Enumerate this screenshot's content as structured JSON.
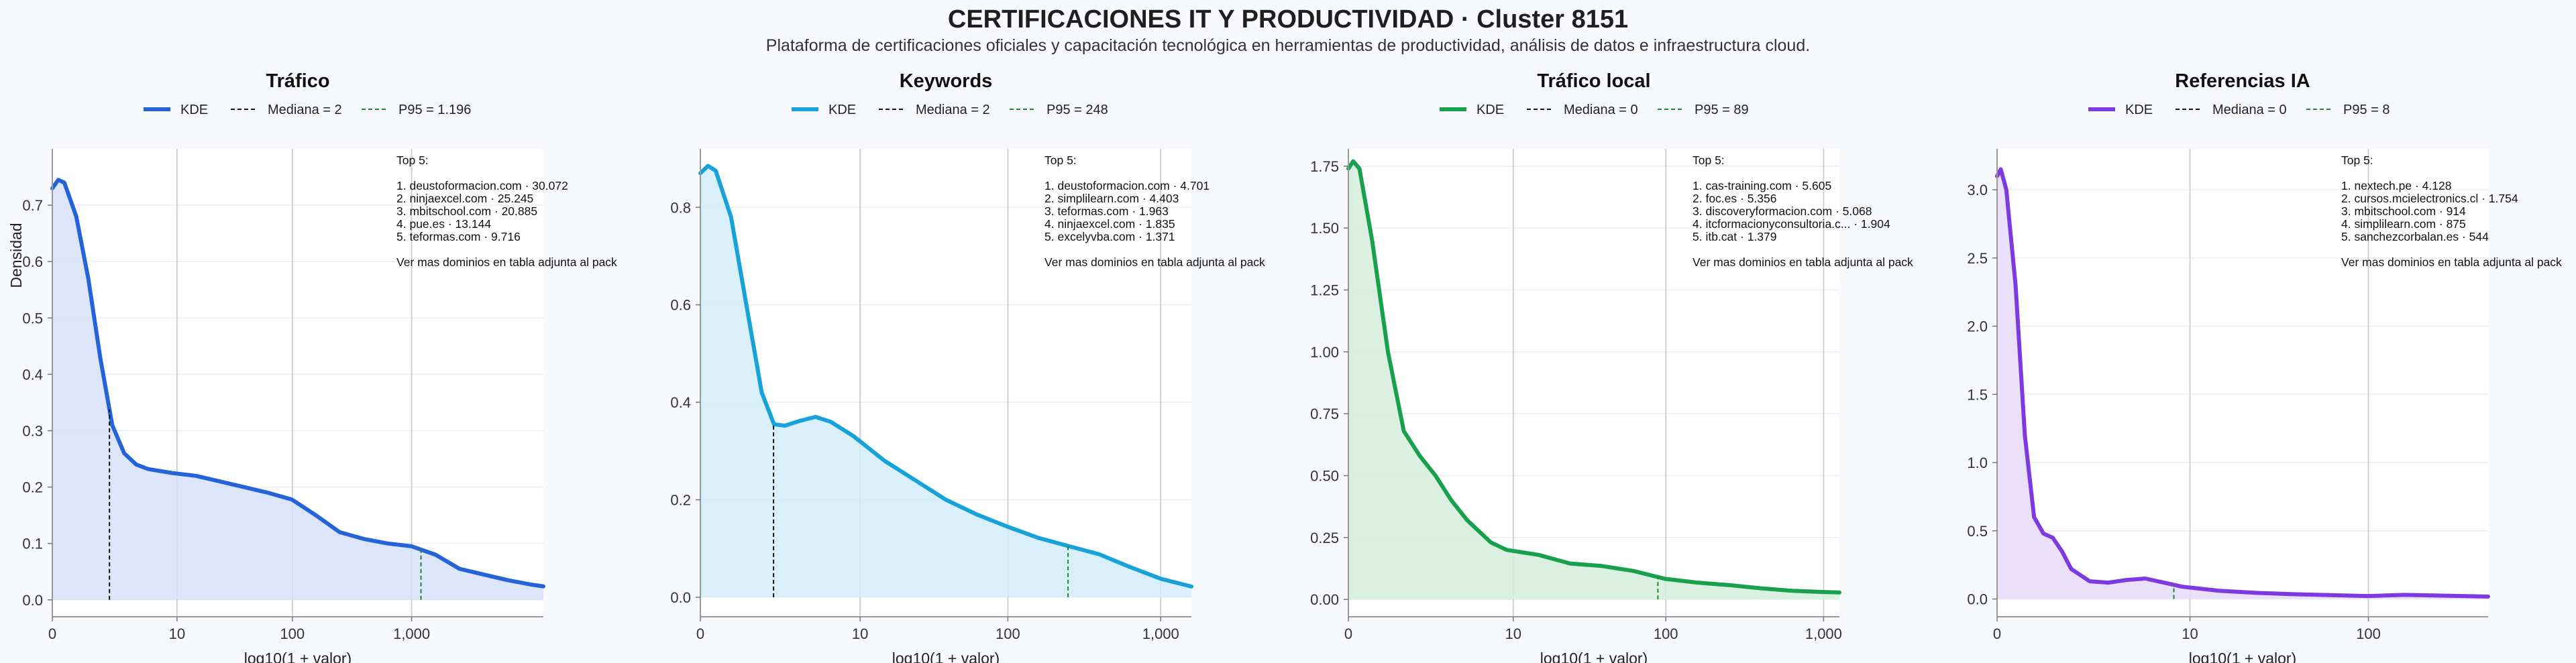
{
  "page": {
    "title": "CERTIFICACIONES IT Y PRODUCTIVIDAD · Cluster 8151",
    "subtitle": "Plataforma de certificaciones oficiales y capacitación tecnológica en herramientas de productividad, análisis de datos e infraestructura cloud."
  },
  "chart_data": [
    {
      "type": "area",
      "title": "Tráfico",
      "color": "#2563d8",
      "fill": "#d6e1f8",
      "xlabel": "log10(1 + valor)",
      "ylabel": "Densidad",
      "xlim": [
        0,
        4.1
      ],
      "ylim": [
        -0.03,
        0.8
      ],
      "xticks": [
        {
          "v": 0,
          "label": "0"
        },
        {
          "v": 1.041,
          "label": "10"
        },
        {
          "v": 2.004,
          "label": "100"
        },
        {
          "v": 3.0,
          "label": "1,000"
        }
      ],
      "yticks": [
        {
          "v": 0,
          "label": "0.0"
        },
        {
          "v": 0.1,
          "label": "0.1"
        },
        {
          "v": 0.2,
          "label": "0.2"
        },
        {
          "v": 0.3,
          "label": "0.3"
        },
        {
          "v": 0.4,
          "label": "0.4"
        },
        {
          "v": 0.5,
          "label": "0.5"
        },
        {
          "v": 0.6,
          "label": "0.6"
        },
        {
          "v": 0.7,
          "label": "0.7"
        }
      ],
      "legend": [
        "KDE",
        "Mediana = 2",
        "P95 = 1.196"
      ],
      "median_x": 0.477,
      "p95_x": 3.078,
      "kde": [
        [
          0,
          0.73
        ],
        [
          0.05,
          0.745
        ],
        [
          0.1,
          0.74
        ],
        [
          0.2,
          0.68
        ],
        [
          0.3,
          0.57
        ],
        [
          0.4,
          0.43
        ],
        [
          0.5,
          0.31
        ],
        [
          0.6,
          0.26
        ],
        [
          0.7,
          0.24
        ],
        [
          0.8,
          0.232
        ],
        [
          1.0,
          0.225
        ],
        [
          1.2,
          0.22
        ],
        [
          1.4,
          0.21
        ],
        [
          1.6,
          0.2
        ],
        [
          1.8,
          0.19
        ],
        [
          2.0,
          0.178
        ],
        [
          2.2,
          0.15
        ],
        [
          2.4,
          0.12
        ],
        [
          2.6,
          0.108
        ],
        [
          2.8,
          0.1
        ],
        [
          3.0,
          0.095
        ],
        [
          3.2,
          0.08
        ],
        [
          3.4,
          0.055
        ],
        [
          3.6,
          0.045
        ],
        [
          3.8,
          0.035
        ],
        [
          4.0,
          0.027
        ],
        [
          4.1,
          0.024
        ]
      ],
      "annotation": [
        "Top 5:",
        "",
        "1. deustoformacion.com · 30.072",
        "2. ninjaexcel.com · 25.245",
        "3. mbitschool.com · 20.885",
        "4. pue.es · 13.144",
        "5. teformas.com · 9.716",
        "",
        "Ver mas dominios en tabla adjunta al pack"
      ]
    },
    {
      "type": "area",
      "title": "Keywords",
      "color": "#17a2da",
      "fill": "#d2ecf9",
      "xlabel": "log10(1 + valor)",
      "ylabel": "",
      "xlim": [
        0,
        3.2
      ],
      "ylim": [
        -0.04,
        0.92
      ],
      "xticks": [
        {
          "v": 0,
          "label": "0"
        },
        {
          "v": 1.041,
          "label": "10"
        },
        {
          "v": 2.004,
          "label": "100"
        },
        {
          "v": 3.0,
          "label": "1,000"
        }
      ],
      "yticks": [
        {
          "v": 0,
          "label": "0.0"
        },
        {
          "v": 0.2,
          "label": "0.2"
        },
        {
          "v": 0.4,
          "label": "0.4"
        },
        {
          "v": 0.6,
          "label": "0.6"
        },
        {
          "v": 0.8,
          "label": "0.8"
        }
      ],
      "legend": [
        "KDE",
        "Mediana = 2",
        "P95 = 248"
      ],
      "median_x": 0.477,
      "p95_x": 2.396,
      "kde": [
        [
          0,
          0.87
        ],
        [
          0.05,
          0.885
        ],
        [
          0.1,
          0.875
        ],
        [
          0.2,
          0.78
        ],
        [
          0.3,
          0.6
        ],
        [
          0.4,
          0.42
        ],
        [
          0.48,
          0.355
        ],
        [
          0.55,
          0.352
        ],
        [
          0.65,
          0.362
        ],
        [
          0.75,
          0.37
        ],
        [
          0.85,
          0.36
        ],
        [
          1.0,
          0.33
        ],
        [
          1.2,
          0.28
        ],
        [
          1.4,
          0.24
        ],
        [
          1.6,
          0.2
        ],
        [
          1.8,
          0.17
        ],
        [
          2.0,
          0.145
        ],
        [
          2.2,
          0.122
        ],
        [
          2.4,
          0.105
        ],
        [
          2.6,
          0.088
        ],
        [
          2.8,
          0.062
        ],
        [
          3.0,
          0.038
        ],
        [
          3.2,
          0.022
        ]
      ],
      "annotation": [
        "Top 5:",
        "",
        "1. deustoformacion.com · 4.701",
        "2. simplilearn.com · 4.403",
        "3. teformas.com · 1.963",
        "4. ninjaexcel.com · 1.835",
        "5. excelyvba.com · 1.371",
        "",
        "Ver mas dominios en tabla adjunta al pack"
      ]
    },
    {
      "type": "area",
      "title": "Tráfico local",
      "color": "#18a04c",
      "fill": "#d3eedc",
      "xlabel": "log10(1 + valor)",
      "ylabel": "",
      "xlim": [
        0,
        3.1
      ],
      "ylim": [
        -0.07,
        1.82
      ],
      "xticks": [
        {
          "v": 0,
          "label": "0"
        },
        {
          "v": 1.041,
          "label": "10"
        },
        {
          "v": 2.004,
          "label": "100"
        },
        {
          "v": 3.0,
          "label": "1,000"
        }
      ],
      "yticks": [
        {
          "v": 0,
          "label": "0.00"
        },
        {
          "v": 0.25,
          "label": "0.25"
        },
        {
          "v": 0.5,
          "label": "0.50"
        },
        {
          "v": 0.75,
          "label": "0.75"
        },
        {
          "v": 1.0,
          "label": "1.00"
        },
        {
          "v": 1.25,
          "label": "1.25"
        },
        {
          "v": 1.5,
          "label": "1.50"
        },
        {
          "v": 1.75,
          "label": "1.75"
        }
      ],
      "legend": [
        "KDE",
        "Mediana = 0",
        "P95 = 89"
      ],
      "median_x": 0,
      "p95_x": 1.954,
      "kde": [
        [
          0,
          1.74
        ],
        [
          0.03,
          1.77
        ],
        [
          0.07,
          1.74
        ],
        [
          0.15,
          1.45
        ],
        [
          0.25,
          1.0
        ],
        [
          0.35,
          0.68
        ],
        [
          0.45,
          0.58
        ],
        [
          0.55,
          0.5
        ],
        [
          0.65,
          0.4
        ],
        [
          0.75,
          0.32
        ],
        [
          0.9,
          0.23
        ],
        [
          1.0,
          0.2
        ],
        [
          1.2,
          0.18
        ],
        [
          1.4,
          0.145
        ],
        [
          1.6,
          0.135
        ],
        [
          1.8,
          0.115
        ],
        [
          2.0,
          0.083
        ],
        [
          2.2,
          0.068
        ],
        [
          2.4,
          0.058
        ],
        [
          2.6,
          0.045
        ],
        [
          2.8,
          0.035
        ],
        [
          3.0,
          0.03
        ],
        [
          3.1,
          0.028
        ]
      ],
      "annotation": [
        "Top 5:",
        "",
        "1. cas-training.com · 5.605",
        "2. foc.es · 5.356",
        "3. discoveryformacion.com · 5.068",
        "4. itcformacionyconsultoria.c... · 1.904",
        "5. itb.cat · 1.379",
        "",
        "Ver mas dominios en tabla adjunta al pack"
      ]
    },
    {
      "type": "area",
      "title": "Referencias IA",
      "color": "#7c3ae0",
      "fill": "#e8dbf8",
      "xlabel": "log10(1 + valor)",
      "ylabel": "",
      "xlim": [
        0,
        2.65
      ],
      "ylim": [
        -0.13,
        3.3
      ],
      "xticks": [
        {
          "v": 0,
          "label": "0"
        },
        {
          "v": 1.041,
          "label": "10"
        },
        {
          "v": 2.004,
          "label": "100"
        }
      ],
      "yticks": [
        {
          "v": 0,
          "label": "0.0"
        },
        {
          "v": 0.5,
          "label": "0.5"
        },
        {
          "v": 1.0,
          "label": "1.0"
        },
        {
          "v": 1.5,
          "label": "1.5"
        },
        {
          "v": 2.0,
          "label": "2.0"
        },
        {
          "v": 2.5,
          "label": "2.5"
        },
        {
          "v": 3.0,
          "label": "3.0"
        }
      ],
      "legend": [
        "KDE",
        "Mediana = 0",
        "P95 = 8"
      ],
      "median_x": 0,
      "p95_x": 0.954,
      "kde": [
        [
          0,
          3.1
        ],
        [
          0.02,
          3.15
        ],
        [
          0.05,
          3.0
        ],
        [
          0.1,
          2.3
        ],
        [
          0.15,
          1.2
        ],
        [
          0.2,
          0.6
        ],
        [
          0.25,
          0.48
        ],
        [
          0.3,
          0.45
        ],
        [
          0.35,
          0.35
        ],
        [
          0.4,
          0.22
        ],
        [
          0.5,
          0.13
        ],
        [
          0.6,
          0.12
        ],
        [
          0.7,
          0.14
        ],
        [
          0.8,
          0.15
        ],
        [
          0.9,
          0.12
        ],
        [
          1.0,
          0.09
        ],
        [
          1.2,
          0.06
        ],
        [
          1.4,
          0.045
        ],
        [
          1.6,
          0.035
        ],
        [
          1.8,
          0.028
        ],
        [
          2.0,
          0.022
        ],
        [
          2.2,
          0.03
        ],
        [
          2.4,
          0.025
        ],
        [
          2.65,
          0.018
        ]
      ],
      "annotation": [
        "Top 5:",
        "",
        "1. nextech.pe · 4.128",
        "2. cursos.mcielectronics.cl · 1.754",
        "3. mbitschool.com · 914",
        "4. simplilearn.com · 875",
        "5. sanchezcorbalan.es · 544",
        "",
        "Ver mas dominios en tabla adjunta al pack"
      ]
    }
  ]
}
